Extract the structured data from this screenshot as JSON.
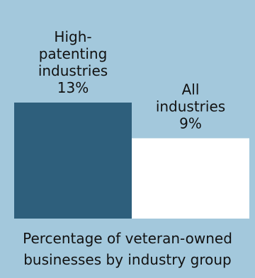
{
  "colors": {
    "background": "#a3c8dc",
    "bars": [
      "#2e5f7c",
      "#ffffff"
    ]
  },
  "chart_data": {
    "type": "bar",
    "categories": [
      "High-patenting industries",
      "All industries"
    ],
    "values": [
      13,
      9
    ],
    "value_labels": [
      "13%",
      "9%"
    ],
    "category_label_lines": [
      [
        "High-",
        "patenting",
        "industries"
      ],
      [
        "All",
        "industries"
      ]
    ],
    "caption_lines": [
      "Percentage of veteran-owned",
      "businesses by industry group"
    ],
    "ylim": [
      0,
      13
    ],
    "grid": false,
    "legend": "none"
  }
}
